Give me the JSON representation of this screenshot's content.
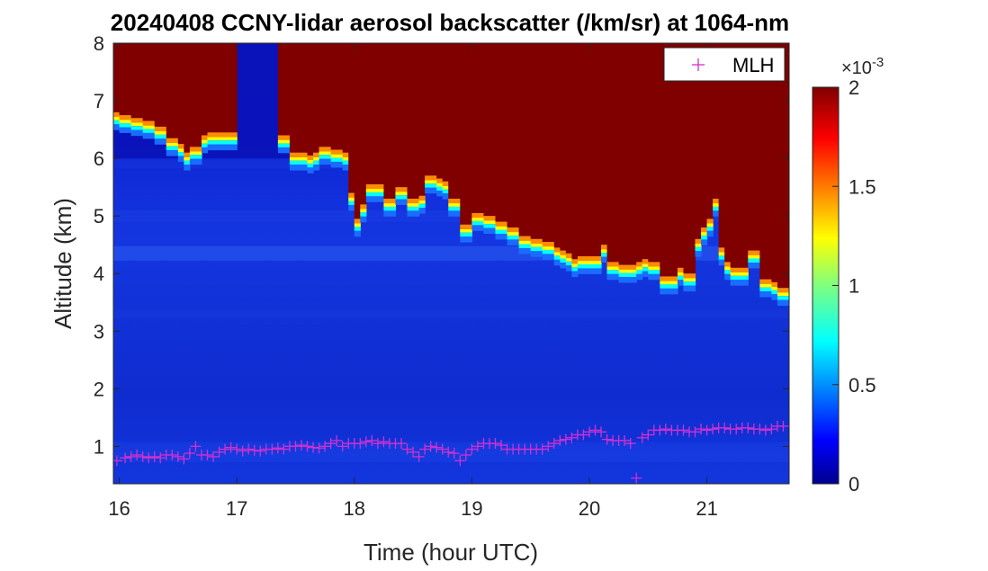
{
  "chart_data": {
    "type": "heatmap",
    "title": "20240408 CCNY-lidar aerosol backscatter (/km/sr) at 1064-nm",
    "xlabel": "Time (hour UTC)",
    "ylabel": "Altitude (km)",
    "xlim": [
      15.95,
      21.7
    ],
    "ylim": [
      0.35,
      8
    ],
    "xticks": [
      16,
      17,
      18,
      19,
      20,
      21
    ],
    "yticks": [
      1,
      2,
      3,
      4,
      5,
      6,
      7,
      8
    ],
    "colorbar": {
      "colormap": "jet",
      "clim": [
        0,
        0.002
      ],
      "ticks": [
        0,
        0.5,
        1,
        1.5,
        2
      ],
      "multiplier": "×10",
      "exponent": "-3"
    },
    "legend": {
      "entries": [
        "MLH"
      ],
      "position": "top-right",
      "marker": "+",
      "color": "#d030d0"
    },
    "saturated_layer_bottom_km": {
      "x": [
        15.95,
        16.0,
        16.1,
        16.2,
        16.3,
        16.4,
        16.5,
        16.55,
        16.6,
        16.7,
        16.75,
        16.8,
        17.0,
        17.2,
        17.35,
        17.45,
        17.55,
        17.6,
        17.65,
        17.7,
        17.8,
        17.9,
        17.95,
        18.0,
        18.05,
        18.1,
        18.15,
        18.25,
        18.35,
        18.45,
        18.55,
        18.6,
        18.7,
        18.75,
        18.8,
        18.9,
        19.0,
        19.05,
        19.1,
        19.2,
        19.3,
        19.4,
        19.5,
        19.6,
        19.7,
        19.75,
        19.8,
        19.85,
        19.9,
        20.0,
        20.1,
        20.15,
        20.25,
        20.3,
        20.4,
        20.45,
        20.5,
        20.6,
        20.7,
        20.75,
        20.8,
        20.9,
        20.95,
        21.0,
        21.05,
        21.1,
        21.15,
        21.2,
        21.3,
        21.35,
        21.45,
        21.55,
        21.6,
        21.7
      ],
      "y": [
        6.8,
        6.75,
        6.7,
        6.65,
        6.55,
        6.35,
        6.25,
        6.1,
        6.2,
        6.4,
        6.45,
        6.45,
        null,
        null,
        6.4,
        6.1,
        6.1,
        6.05,
        6.1,
        6.2,
        6.15,
        6.1,
        5.4,
        4.95,
        5.2,
        5.55,
        5.55,
        5.3,
        5.5,
        5.3,
        5.35,
        5.7,
        5.65,
        5.6,
        5.3,
        4.85,
        5.05,
        5.05,
        5.0,
        4.9,
        4.8,
        4.65,
        4.6,
        4.55,
        4.45,
        4.4,
        4.35,
        4.25,
        4.3,
        4.3,
        4.5,
        4.2,
        4.15,
        4.15,
        4.2,
        4.25,
        4.2,
        3.95,
        3.95,
        4.1,
        4.0,
        4.6,
        4.8,
        4.95,
        5.3,
        4.45,
        4.2,
        4.1,
        4.1,
        4.4,
        3.9,
        3.85,
        3.75,
        3.75
      ]
    },
    "series": [
      {
        "name": "MLH",
        "marker": "+",
        "x": [
          15.98,
          16.05,
          16.1,
          16.15,
          16.2,
          16.25,
          16.3,
          16.35,
          16.4,
          16.45,
          16.5,
          16.55,
          16.6,
          16.65,
          16.7,
          16.75,
          16.8,
          16.85,
          16.9,
          16.95,
          17.0,
          17.05,
          17.1,
          17.15,
          17.2,
          17.25,
          17.3,
          17.35,
          17.4,
          17.45,
          17.5,
          17.55,
          17.6,
          17.65,
          17.7,
          17.75,
          17.8,
          17.85,
          17.9,
          17.95,
          18.0,
          18.05,
          18.1,
          18.15,
          18.2,
          18.25,
          18.3,
          18.35,
          18.4,
          18.45,
          18.5,
          18.55,
          18.6,
          18.65,
          18.7,
          18.75,
          18.8,
          18.85,
          18.9,
          18.95,
          19.0,
          19.05,
          19.1,
          19.15,
          19.2,
          19.25,
          19.3,
          19.35,
          19.4,
          19.45,
          19.5,
          19.55,
          19.6,
          19.65,
          19.7,
          19.75,
          19.8,
          19.85,
          19.9,
          19.95,
          20.0,
          20.05,
          20.1,
          20.15,
          20.2,
          20.25,
          20.3,
          20.35,
          20.4,
          20.45,
          20.5,
          20.55,
          20.6,
          20.65,
          20.7,
          20.75,
          20.8,
          20.85,
          20.9,
          20.95,
          21.0,
          21.05,
          21.1,
          21.15,
          21.2,
          21.25,
          21.3,
          21.35,
          21.4,
          21.45,
          21.5,
          21.55,
          21.6,
          21.65
        ],
        "y": [
          0.75,
          0.8,
          0.82,
          0.85,
          0.82,
          0.8,
          0.82,
          0.8,
          0.85,
          0.85,
          0.82,
          0.78,
          0.88,
          1.0,
          0.85,
          0.85,
          0.82,
          0.9,
          0.95,
          0.98,
          0.95,
          0.92,
          0.95,
          0.93,
          0.92,
          0.95,
          0.95,
          0.97,
          0.95,
          1.0,
          1.0,
          1.02,
          1.0,
          0.98,
          0.97,
          1.0,
          1.05,
          1.1,
          1.0,
          1.05,
          1.05,
          1.05,
          1.08,
          1.1,
          1.05,
          1.08,
          1.05,
          1.05,
          1.05,
          0.95,
          0.9,
          0.82,
          0.95,
          1.0,
          0.98,
          0.95,
          0.9,
          0.88,
          0.75,
          0.85,
          0.95,
          1.0,
          1.05,
          1.05,
          1.05,
          1.02,
          0.95,
          0.95,
          0.95,
          0.95,
          0.95,
          0.95,
          0.95,
          1.0,
          1.05,
          1.1,
          1.12,
          1.15,
          1.2,
          1.2,
          1.25,
          1.28,
          1.25,
          1.12,
          1.1,
          1.1,
          1.1,
          1.05,
          0.45,
          1.15,
          1.2,
          1.28,
          1.28,
          1.3,
          1.28,
          1.28,
          1.28,
          1.25,
          1.25,
          1.3,
          1.28,
          1.3,
          1.32,
          1.32,
          1.3,
          1.3,
          1.32,
          1.32,
          1.3,
          1.3,
          1.28,
          1.3,
          1.35,
          1.35
        ]
      }
    ]
  }
}
